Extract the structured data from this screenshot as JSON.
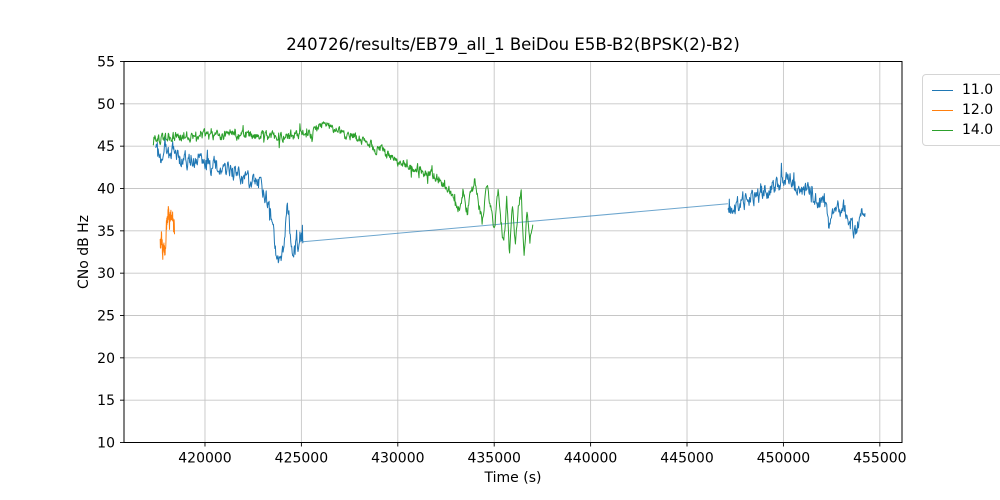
{
  "chart_data": {
    "type": "line",
    "title": "240726/results/EB79_all_1 BeiDou E5B-B2(BPSK(2)-B2)",
    "xlabel": "Time (s)",
    "ylabel": "CNo dB Hz",
    "xlim": [
      415800,
      456150
    ],
    "ylim": [
      10,
      55
    ],
    "xticks": [
      420000,
      425000,
      430000,
      435000,
      440000,
      445000,
      450000,
      455000
    ],
    "yticks": [
      10,
      15,
      20,
      25,
      30,
      35,
      40,
      45,
      50,
      55
    ],
    "grid": true,
    "legend": {
      "position": "outside-upper-right",
      "entries": [
        {
          "label": "11.0",
          "color": "#1f77b4"
        },
        {
          "label": "12.0",
          "color": "#ff7f0e"
        },
        {
          "label": "14.0",
          "color": "#2ca02c"
        }
      ]
    },
    "series": [
      {
        "name": "11.0",
        "color": "#1f77b4",
        "segments": [
          {
            "start": 417450,
            "end": 425080,
            "step": 25,
            "noise": 0.75,
            "anchors": [
              [
                417450,
                44.2
              ],
              [
                417550,
                45.0
              ],
              [
                417700,
                43.6
              ],
              [
                417850,
                44.8
              ],
              [
                418000,
                44.5
              ],
              [
                418200,
                43.6
              ],
              [
                418350,
                44.6
              ],
              [
                418500,
                43.9
              ],
              [
                418700,
                43.3
              ],
              [
                418900,
                44.0
              ],
              [
                419100,
                43.2
              ],
              [
                419300,
                43.6
              ],
              [
                419500,
                43.0
              ],
              [
                419700,
                43.4
              ],
              [
                419900,
                42.8
              ],
              [
                420100,
                43.2
              ],
              [
                420300,
                42.3
              ],
              [
                420500,
                42.9
              ],
              [
                420700,
                42.1
              ],
              [
                420900,
                42.6
              ],
              [
                421100,
                41.9
              ],
              [
                421300,
                42.4
              ],
              [
                421500,
                41.7
              ],
              [
                421700,
                42.1
              ],
              [
                421900,
                41.2
              ],
              [
                422100,
                41.6
              ],
              [
                422300,
                40.7
              ],
              [
                422500,
                41.2
              ],
              [
                422700,
                40.2
              ],
              [
                422900,
                40.6
              ],
              [
                423100,
                39.3
              ],
              [
                423300,
                38.2
              ],
              [
                423500,
                36.2
              ],
              [
                423650,
                33.0
              ],
              [
                423800,
                31.5
              ],
              [
                423950,
                30.8
              ],
              [
                424050,
                32.5
              ],
              [
                424150,
                35.0
              ],
              [
                424250,
                38.6
              ],
              [
                424350,
                37.0
              ],
              [
                424450,
                33.5
              ],
              [
                424550,
                31.5
              ],
              [
                424650,
                33.0
              ],
              [
                424750,
                34.8
              ],
              [
                424850,
                32.8
              ],
              [
                424950,
                34.6
              ],
              [
                425080,
                33.7
              ]
            ]
          },
          {
            "start": 425080,
            "end": 447120,
            "step": 30000,
            "noise": 0,
            "opacity": 0.65,
            "anchors": [
              [
                425080,
                33.7
              ],
              [
                447120,
                38.2
              ]
            ]
          },
          {
            "start": 447120,
            "end": 454230,
            "step": 25,
            "noise": 0.8,
            "anchors": [
              [
                447120,
                38.2
              ],
              [
                447250,
                37.5
              ],
              [
                447400,
                38.3
              ],
              [
                447600,
                38.0
              ],
              [
                447800,
                38.8
              ],
              [
                448000,
                38.4
              ],
              [
                448200,
                39.2
              ],
              [
                448400,
                38.8
              ],
              [
                448600,
                39.5
              ],
              [
                448800,
                39.3
              ],
              [
                449000,
                40.0
              ],
              [
                449200,
                39.6
              ],
              [
                449400,
                40.3
              ],
              [
                449600,
                40.0
              ],
              [
                449800,
                40.6
              ],
              [
                450000,
                40.4
              ],
              [
                450200,
                41.0
              ],
              [
                450400,
                40.7
              ],
              [
                450600,
                40.3
              ],
              [
                450800,
                40.6
              ],
              [
                451000,
                40.0
              ],
              [
                451200,
                40.3
              ],
              [
                451400,
                39.6
              ],
              [
                451600,
                39.0
              ],
              [
                451800,
                38.5
              ],
              [
                452000,
                38.2
              ],
              [
                452200,
                37.4
              ],
              [
                452400,
                35.4
              ],
              [
                452550,
                37.2
              ],
              [
                452700,
                37.9
              ],
              [
                452900,
                37.5
              ],
              [
                453100,
                37.8
              ],
              [
                453300,
                36.8
              ],
              [
                453500,
                36.0
              ],
              [
                453700,
                34.6
              ],
              [
                453850,
                35.8
              ],
              [
                454000,
                36.8
              ],
              [
                454120,
                37.3
              ],
              [
                454230,
                36.6
              ]
            ]
          }
        ]
      },
      {
        "name": "12.0",
        "color": "#ff7f0e",
        "segments": [
          {
            "start": 417680,
            "end": 418420,
            "step": 10,
            "noise": 0.9,
            "anchors": [
              [
                417680,
                33.2
              ],
              [
                417740,
                34.6
              ],
              [
                417800,
                32.6
              ],
              [
                417860,
                34.2
              ],
              [
                417920,
                32.2
              ],
              [
                417980,
                34.8
              ],
              [
                418040,
                36.4
              ],
              [
                418100,
                37.6
              ],
              [
                418160,
                36.2
              ],
              [
                418220,
                37.4
              ],
              [
                418280,
                35.4
              ],
              [
                418340,
                36.2
              ],
              [
                418420,
                35.0
              ]
            ]
          }
        ]
      },
      {
        "name": "14.0",
        "color": "#2ca02c",
        "segments": [
          {
            "start": 417300,
            "end": 437000,
            "step": 25,
            "noise": 0.5,
            "anchors": [
              [
                417300,
                45.6
              ],
              [
                417500,
                46.0
              ],
              [
                417800,
                45.8
              ],
              [
                418200,
                46.2
              ],
              [
                418600,
                46.0
              ],
              [
                419000,
                46.3
              ],
              [
                419400,
                46.1
              ],
              [
                419800,
                46.4
              ],
              [
                420200,
                46.2
              ],
              [
                420600,
                46.4
              ],
              [
                421000,
                46.2
              ],
              [
                421400,
                46.5
              ],
              [
                421800,
                46.3
              ],
              [
                422200,
                46.4
              ],
              [
                422600,
                46.2
              ],
              [
                423000,
                46.4
              ],
              [
                423400,
                46.1
              ],
              [
                423800,
                46.3
              ],
              [
                424200,
                46.2
              ],
              [
                424600,
                46.3
              ],
              [
                425000,
                46.4
              ],
              [
                425400,
                46.5
              ],
              [
                425700,
                46.8
              ],
              [
                426000,
                47.3
              ],
              [
                426300,
                47.5
              ],
              [
                426600,
                47.1
              ],
              [
                426900,
                46.6
              ],
              [
                427200,
                46.3
              ],
              [
                427500,
                46.5
              ],
              [
                427800,
                46.0
              ],
              [
                428100,
                45.7
              ],
              [
                428400,
                45.4
              ],
              [
                428700,
                45.0
              ],
              [
                429000,
                44.6
              ],
              [
                429300,
                44.2
              ],
              [
                429600,
                43.8
              ],
              [
                429900,
                43.4
              ],
              [
                430200,
                43.1
              ],
              [
                430500,
                42.8
              ],
              [
                430800,
                42.6
              ],
              [
                431100,
                42.3
              ],
              [
                431400,
                42.0
              ],
              [
                431700,
                41.8
              ],
              [
                432000,
                41.4
              ],
              [
                432300,
                40.8
              ],
              [
                432600,
                40.0
              ],
              [
                432800,
                39.0
              ],
              [
                433000,
                38.2
              ],
              [
                433200,
                37.6
              ],
              [
                433400,
                39.4
              ],
              [
                433600,
                37.2
              ],
              [
                433800,
                39.8
              ],
              [
                434000,
                41.2
              ],
              [
                434200,
                38.0
              ],
              [
                434400,
                36.2
              ],
              [
                434600,
                40.3
              ],
              [
                434800,
                38.2
              ],
              [
                435000,
                34.8
              ],
              [
                435200,
                39.8
              ],
              [
                435350,
                36.0
              ],
              [
                435500,
                33.4
              ],
              [
                435650,
                38.8
              ],
              [
                435800,
                32.2
              ],
              [
                435950,
                38.2
              ],
              [
                436100,
                33.2
              ],
              [
                436250,
                38.0
              ],
              [
                436400,
                39.6
              ],
              [
                436550,
                31.8
              ],
              [
                436700,
                37.6
              ],
              [
                436850,
                33.8
              ],
              [
                437000,
                35.6
              ]
            ]
          }
        ]
      }
    ]
  }
}
